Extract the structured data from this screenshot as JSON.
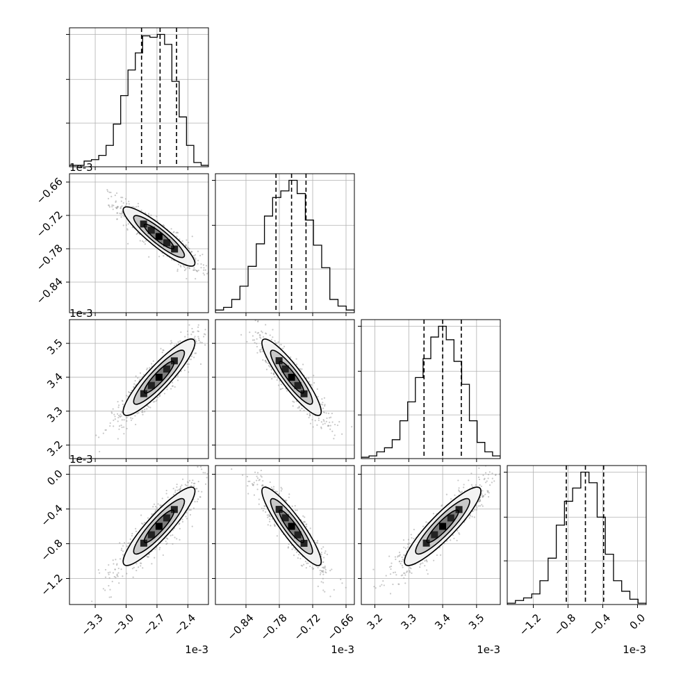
{
  "chart_data": {
    "type": "corner",
    "parameters": [
      {
        "offset_label": "1e-3",
        "ticks": [
          -3.3,
          -3.0,
          -2.7,
          -2.4
        ],
        "tick_labels": [
          "−3.3",
          "−3.0",
          "−2.7",
          "−2.4"
        ],
        "range": [
          -3.55,
          -2.2
        ],
        "quantiles": [
          -2.85,
          -2.67,
          -2.51
        ],
        "mean": -2.68,
        "sd": 0.17
      },
      {
        "offset_label": "1e-3",
        "ticks": [
          -0.84,
          -0.78,
          -0.72,
          -0.66
        ],
        "tick_labels": [
          "−0.84",
          "−0.78",
          "−0.72",
          "−0.66"
        ],
        "range": [
          -0.895,
          -0.645
        ],
        "quantiles": [
          -0.786,
          -0.758,
          -0.732
        ],
        "mean": -0.758,
        "sd": 0.026
      },
      {
        "offset_label": "1e-3",
        "ticks": [
          3.2,
          3.3,
          3.4,
          3.5
        ],
        "tick_labels": [
          "3.2",
          "3.3",
          "3.4",
          "3.5"
        ],
        "range": [
          3.16,
          3.57
        ],
        "quantiles": [
          3.345,
          3.4,
          3.455
        ],
        "mean": 3.4,
        "sd": 0.055
      },
      {
        "offset_label": "1e-3",
        "ticks": [
          -1.2,
          -0.8,
          -0.4,
          0.0
        ],
        "tick_labels": [
          "−1.2",
          "−0.8",
          "−0.4",
          "0.0"
        ],
        "range": [
          -1.5,
          0.1
        ],
        "quantiles": [
          -0.82,
          -0.6,
          -0.39
        ],
        "mean": -0.6,
        "sd": 0.22
      }
    ],
    "correlations": [
      [
        1.0,
        -0.9,
        0.9,
        0.9
      ],
      [
        -0.9,
        1.0,
        -0.9,
        -0.9
      ],
      [
        0.9,
        -0.9,
        1.0,
        0.9
      ],
      [
        0.9,
        -0.9,
        0.9,
        1.0
      ]
    ],
    "histograms": [
      [
        0.01,
        0.01,
        0.04,
        0.05,
        0.08,
        0.15,
        0.3,
        0.5,
        0.68,
        0.8,
        0.92,
        0.91,
        0.93,
        0.86,
        0.6,
        0.35,
        0.15,
        0.03,
        0.01
      ],
      [
        0.02,
        0.04,
        0.1,
        0.2,
        0.35,
        0.52,
        0.73,
        0.87,
        0.92,
        1.0,
        0.9,
        0.7,
        0.51,
        0.34,
        0.1,
        0.05,
        0.02
      ],
      [
        0.01,
        0.02,
        0.05,
        0.08,
        0.14,
        0.28,
        0.42,
        0.6,
        0.74,
        0.9,
        0.98,
        0.88,
        0.72,
        0.55,
        0.28,
        0.12,
        0.05,
        0.02
      ],
      [
        0.01,
        0.03,
        0.05,
        0.08,
        0.18,
        0.35,
        0.6,
        0.78,
        0.88,
        1.0,
        0.92,
        0.66,
        0.38,
        0.18,
        0.1,
        0.04,
        0.01
      ]
    ],
    "grid": true,
    "contour_levels": 3
  }
}
